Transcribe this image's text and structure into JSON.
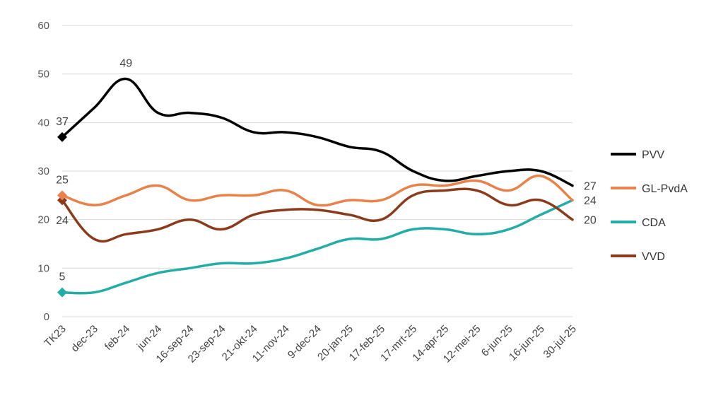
{
  "chart_data": {
    "type": "line",
    "title": "",
    "xlabel": "",
    "ylabel": "",
    "ylim": [
      0,
      60
    ],
    "yticks": [
      0,
      10,
      20,
      30,
      40,
      50,
      60
    ],
    "grid": true,
    "legend_position": "right",
    "categories": [
      "TK23",
      "dec-23",
      "feb-24",
      "jun-24",
      "16-sep-24",
      "23-sep-24",
      "21-okt-24",
      "11-nov-24",
      "9-dec-24",
      "20-jan-25",
      "17-feb-25",
      "17-mrt-25",
      "14-apr-25",
      "12-mei-25",
      "6-jun-25",
      "16-jun-25",
      "30-jul-25"
    ],
    "series": [
      {
        "name": "PVV",
        "color": "#000000",
        "values": [
          37,
          43,
          49,
          42,
          42,
          41,
          38,
          38,
          37,
          35,
          34,
          30,
          28,
          29,
          30,
          30,
          27
        ]
      },
      {
        "name": "GL-PvdA",
        "color": "#E8824A",
        "values": [
          25,
          23,
          25,
          27,
          24,
          25,
          25,
          26,
          23,
          24,
          24,
          27,
          27,
          28,
          26,
          29,
          24
        ]
      },
      {
        "name": "CDA",
        "color": "#22ADA6",
        "values": [
          5,
          5,
          7,
          9,
          10,
          11,
          11,
          12,
          14,
          16,
          16,
          18,
          18,
          17,
          18,
          21,
          24
        ]
      },
      {
        "name": "VVD",
        "color": "#8B3A1A",
        "values": [
          24,
          16,
          17,
          18,
          20,
          18,
          21,
          22,
          22,
          21,
          20,
          25,
          26,
          26,
          23,
          24,
          20
        ]
      }
    ],
    "annotations": [
      {
        "series": "PVV",
        "index": 0,
        "text": "37",
        "pos": "above"
      },
      {
        "series": "PVV",
        "index": 2,
        "text": "49",
        "pos": "above"
      },
      {
        "series": "PVV",
        "index": 16,
        "text": "27",
        "pos": "right"
      },
      {
        "series": "GL-PvdA",
        "index": 0,
        "text": "25",
        "pos": "above"
      },
      {
        "series": "GL-PvdA",
        "index": 16,
        "text": "24",
        "pos": "right"
      },
      {
        "series": "CDA",
        "index": 0,
        "text": "5",
        "pos": "above"
      },
      {
        "series": "VVD",
        "index": 0,
        "text": "24",
        "pos": "below"
      },
      {
        "series": "VVD",
        "index": 16,
        "text": "20",
        "pos": "right"
      }
    ]
  }
}
